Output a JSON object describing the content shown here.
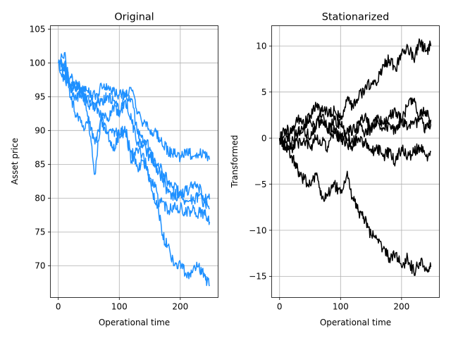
{
  "chart_data": [
    {
      "type": "line",
      "title": "Original",
      "xlabel": "Operational time",
      "ylabel": "Asset price",
      "xlim": [
        -13,
        262
      ],
      "ylim": [
        65.3,
        105.5
      ],
      "xticks": [
        0,
        100,
        200
      ],
      "yticks": [
        70,
        75,
        80,
        85,
        90,
        95,
        100,
        105
      ],
      "grid": true,
      "color": "#1e90ff",
      "series": [
        {
          "x": [
            0,
            10,
            20,
            30,
            40,
            50,
            60,
            70,
            80,
            90,
            100,
            110,
            120,
            130,
            140,
            150,
            160,
            170,
            180,
            190,
            200,
            210,
            220,
            230,
            240,
            248
          ],
          "values": [
            100,
            99.8,
            96.5,
            96.8,
            95.0,
            94.6,
            95.2,
            94.3,
            95.0,
            94.5,
            93.0,
            95.0,
            94.6,
            89.5,
            88.2,
            87.5,
            84.5,
            83.0,
            80.8,
            80.5,
            80.4,
            79.6,
            79.8,
            80.3,
            79.3,
            78.5
          ]
        },
        {
          "x": [
            0,
            10,
            20,
            30,
            40,
            50,
            60,
            70,
            80,
            90,
            100,
            110,
            120,
            130,
            140,
            150,
            160,
            170,
            180,
            190,
            200,
            210,
            220,
            230,
            240,
            248
          ],
          "values": [
            100,
            97.5,
            96.8,
            96.5,
            96.6,
            96.3,
            93.0,
            97.0,
            96.0,
            95.8,
            95.2,
            95.5,
            96.0,
            92.5,
            91.0,
            90.0,
            89.8,
            88.0,
            87.0,
            86.5,
            85.8,
            87.0,
            86.2,
            86.5,
            86.8,
            85.7
          ]
        },
        {
          "x": [
            0,
            10,
            20,
            30,
            40,
            50,
            60,
            70,
            80,
            90,
            100,
            110,
            120,
            130,
            140,
            150,
            160,
            170,
            180,
            190,
            200,
            210,
            220,
            230,
            240,
            248
          ],
          "values": [
            100,
            98.8,
            96.0,
            94.8,
            95.5,
            93.6,
            94.0,
            92.5,
            91.5,
            93.5,
            92.0,
            94.5,
            91.5,
            88.3,
            87.7,
            86.0,
            85.0,
            84.0,
            82.5,
            81.8,
            80.5,
            81.0,
            82.0,
            81.5,
            80.0,
            79.8
          ]
        },
        {
          "x": [
            0,
            10,
            20,
            30,
            40,
            50,
            60,
            70,
            80,
            90,
            100,
            110,
            120,
            130,
            140,
            150,
            160,
            170,
            180,
            190,
            200,
            210,
            220,
            230,
            240,
            248
          ],
          "values": [
            100,
            101.5,
            95.0,
            92.0,
            90.5,
            92.0,
            88.0,
            91.5,
            89.5,
            90.0,
            89.5,
            89.8,
            85.5,
            87.0,
            86.5,
            82.5,
            79.0,
            79.5,
            78.0,
            79.0,
            78.5,
            78.0,
            78.2,
            77.8,
            77.5,
            76.5
          ]
        },
        {
          "x": [
            0,
            10,
            20,
            30,
            40,
            50,
            60,
            70,
            80,
            90,
            100,
            110,
            120,
            130,
            140,
            150,
            160,
            170,
            180,
            190,
            200,
            210,
            220,
            230,
            240,
            248
          ],
          "values": [
            100,
            99.0,
            98.0,
            95.8,
            95.5,
            91.0,
            83.5,
            92.0,
            89.8,
            87.0,
            89.5,
            90.0,
            87.0,
            84.5,
            85.5,
            83.0,
            82.0,
            74.5,
            73.0,
            70.0,
            70.5,
            68.5,
            69.0,
            70.0,
            68.5,
            67.0
          ]
        }
      ]
    },
    {
      "type": "line",
      "title": "Stationarized",
      "xlabel": "Operational time",
      "ylabel": "Transformed",
      "xlim": [
        -13,
        262
      ],
      "ylim": [
        -17.3,
        12.2
      ],
      "xticks": [
        0,
        100,
        200
      ],
      "yticks": [
        -15,
        -10,
        -5,
        0,
        5,
        10
      ],
      "grid": true,
      "color": "#000000",
      "series": [
        {
          "x": [
            0,
            10,
            20,
            30,
            40,
            50,
            60,
            70,
            80,
            90,
            100,
            110,
            120,
            130,
            140,
            150,
            160,
            170,
            180,
            190,
            200,
            210,
            220,
            230,
            240,
            248
          ],
          "values": [
            0,
            -0.5,
            1.0,
            0.3,
            1.5,
            2.0,
            1.0,
            3.5,
            2.5,
            3.0,
            2.0,
            4.0,
            3.5,
            4.5,
            5.5,
            6.0,
            6.0,
            8.0,
            8.5,
            7.5,
            9.0,
            10.0,
            8.5,
            10.5,
            9.5,
            10.0
          ]
        },
        {
          "x": [
            0,
            10,
            20,
            30,
            40,
            50,
            60,
            70,
            80,
            90,
            100,
            110,
            120,
            130,
            140,
            150,
            160,
            170,
            180,
            190,
            200,
            210,
            220,
            230,
            240,
            248
          ],
          "values": [
            0,
            1.0,
            0.5,
            2.0,
            1.5,
            2.5,
            3.5,
            2.5,
            1.0,
            2.0,
            1.5,
            0.0,
            -0.5,
            1.5,
            2.5,
            1.0,
            2.0,
            1.5,
            2.5,
            3.0,
            2.0,
            3.5,
            4.0,
            2.5,
            3.0,
            2.0
          ]
        },
        {
          "x": [
            0,
            10,
            20,
            30,
            40,
            50,
            60,
            70,
            80,
            90,
            100,
            110,
            120,
            130,
            140,
            150,
            160,
            170,
            180,
            190,
            200,
            210,
            220,
            230,
            240,
            248
          ],
          "values": [
            0,
            -1.0,
            -0.5,
            0.5,
            1.0,
            0.0,
            1.5,
            2.0,
            0.5,
            1.0,
            0.0,
            0.5,
            1.0,
            1.5,
            0.5,
            1.0,
            2.0,
            1.0,
            1.5,
            0.5,
            2.0,
            1.0,
            1.5,
            2.0,
            1.0,
            1.5
          ]
        },
        {
          "x": [
            0,
            10,
            20,
            30,
            40,
            50,
            60,
            70,
            80,
            90,
            100,
            110,
            120,
            130,
            140,
            150,
            160,
            170,
            180,
            190,
            200,
            210,
            220,
            230,
            240,
            248
          ],
          "values": [
            0,
            0.5,
            -1.0,
            -0.5,
            0.0,
            -1.0,
            0.0,
            -0.5,
            -1.0,
            0.5,
            0.0,
            -0.5,
            -1.0,
            0.0,
            -0.5,
            -1.5,
            -1.0,
            -2.0,
            -1.5,
            -2.5,
            -1.0,
            -2.0,
            -1.5,
            -1.0,
            -2.0,
            -1.5
          ]
        },
        {
          "x": [
            0,
            10,
            20,
            30,
            40,
            50,
            60,
            70,
            80,
            90,
            100,
            110,
            120,
            130,
            140,
            150,
            160,
            170,
            180,
            190,
            200,
            210,
            220,
            230,
            240,
            248
          ],
          "values": [
            0,
            -1.0,
            -2.0,
            -3.5,
            -4.5,
            -5.0,
            -4.0,
            -6.5,
            -6.0,
            -5.0,
            -6.0,
            -4.0,
            -6.5,
            -8.0,
            -9.0,
            -10.5,
            -11.0,
            -12.0,
            -13.0,
            -12.5,
            -14.0,
            -13.0,
            -14.5,
            -13.5,
            -14.0,
            -14.0
          ]
        }
      ]
    }
  ]
}
